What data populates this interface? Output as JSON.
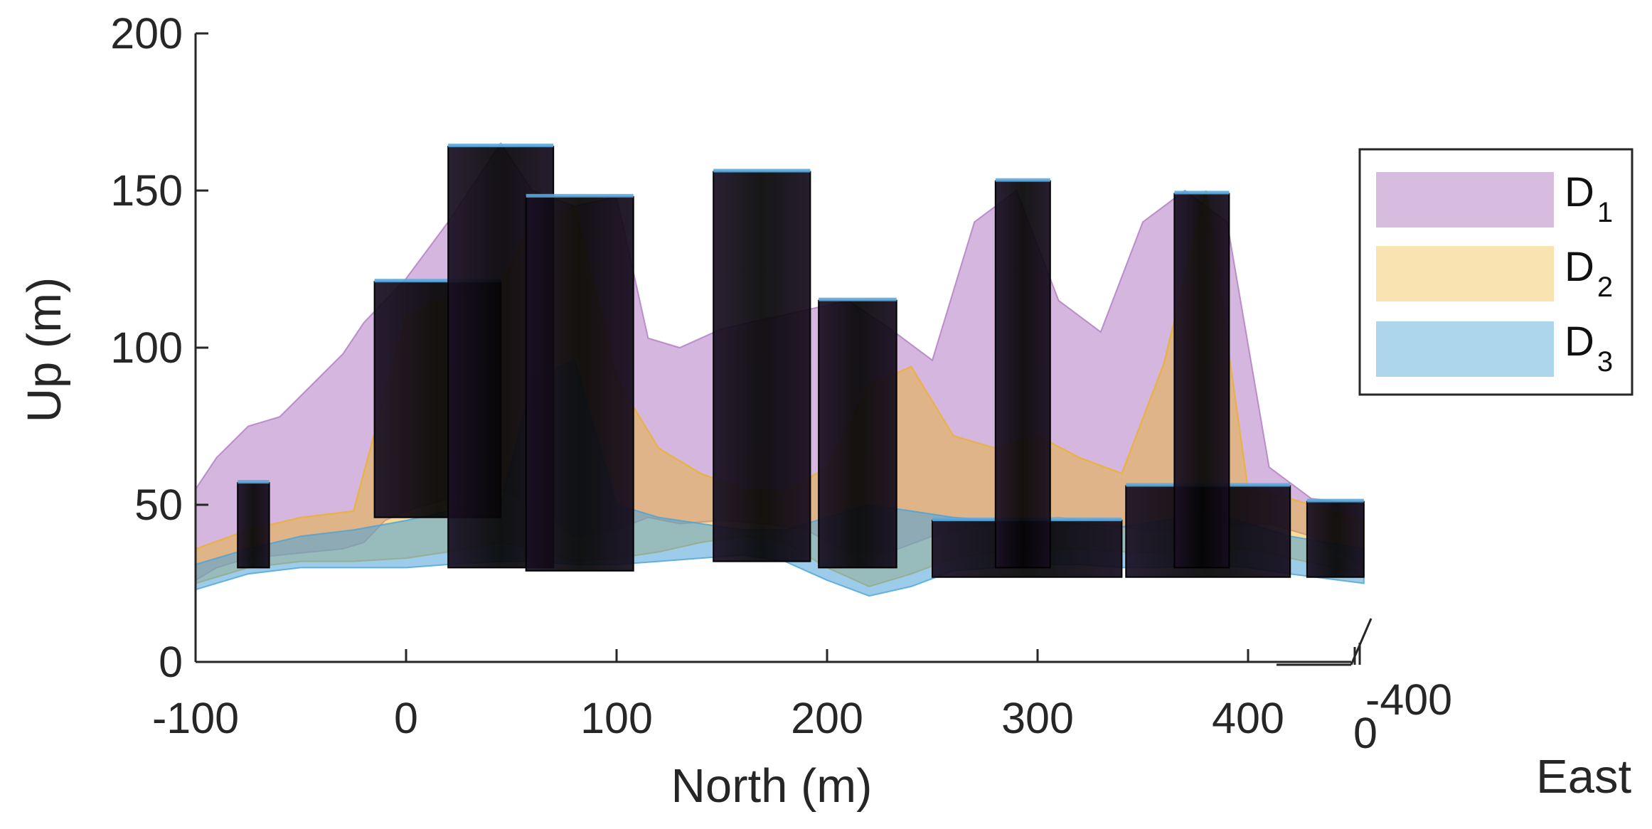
{
  "chart_data": {
    "type": "area",
    "xlabel": "North (m)",
    "ylabel": "Up (m)",
    "zlabel": "East",
    "xlim": [
      -100,
      450
    ],
    "ylim": [
      0,
      200
    ],
    "x_ticks": [
      "-100",
      "0",
      "100",
      "200",
      "300",
      "400"
    ],
    "y_ticks": [
      "0",
      "50",
      "100",
      "150",
      "200"
    ],
    "east_ticks": [
      "-400",
      "0"
    ],
    "legend": {
      "placement": "right",
      "entries": [
        "D",
        "D",
        "D"
      ],
      "subscripts": [
        "1",
        "2",
        "3"
      ]
    },
    "grid": false,
    "colors": {
      "D1": "#b07ac2",
      "D2": "#edb120",
      "D3": "#4aa3d8",
      "buildings": "#0a0a0a"
    },
    "buildings": [
      {
        "north": [
          -80,
          -65
        ],
        "up": [
          30,
          57
        ]
      },
      {
        "north": [
          -15,
          45
        ],
        "up": [
          46,
          121
        ]
      },
      {
        "north": [
          20,
          70
        ],
        "up": [
          30,
          164
        ]
      },
      {
        "north": [
          57,
          108
        ],
        "up": [
          29,
          148
        ]
      },
      {
        "north": [
          146,
          192
        ],
        "up": [
          32,
          156
        ]
      },
      {
        "north": [
          196,
          233
        ],
        "up": [
          30,
          115
        ]
      },
      {
        "north": [
          250,
          340
        ],
        "up": [
          27,
          45
        ]
      },
      {
        "north": [
          280,
          306
        ],
        "up": [
          30,
          153
        ]
      },
      {
        "north": [
          342,
          420
        ],
        "up": [
          27,
          56
        ]
      },
      {
        "north": [
          365,
          391
        ],
        "up": [
          30,
          149
        ]
      },
      {
        "north": [
          428,
          455
        ],
        "up": [
          27,
          51
        ]
      }
    ],
    "series": [
      {
        "name": "D1",
        "x": [
          -100,
          -90,
          -75,
          -60,
          -45,
          -30,
          -20,
          -10,
          0,
          20,
          45,
          60,
          80,
          100,
          115,
          130,
          150,
          170,
          190,
          210,
          230,
          250,
          270,
          290,
          310,
          330,
          350,
          370,
          390,
          410,
          430,
          455
        ],
        "y_low": [
          26,
          30,
          33,
          34,
          35,
          36,
          38,
          45,
          48,
          52,
          55,
          50,
          40,
          42,
          46,
          44,
          45,
          44,
          42,
          35,
          35,
          40,
          43,
          45,
          46,
          44,
          42,
          42,
          43,
          44,
          40,
          30
        ],
        "y_high": [
          55,
          65,
          75,
          78,
          88,
          98,
          108,
          115,
          122,
          140,
          165,
          150,
          145,
          148,
          103,
          100,
          106,
          109,
          112,
          115,
          106,
          96,
          140,
          150,
          115,
          105,
          140,
          150,
          140,
          62,
          52,
          50
        ]
      },
      {
        "name": "D2",
        "x": [
          -100,
          -75,
          -50,
          -25,
          0,
          20,
          45,
          60,
          80,
          100,
          120,
          140,
          160,
          180,
          200,
          220,
          240,
          260,
          280,
          300,
          320,
          340,
          360,
          380,
          400,
          420,
          455
        ],
        "y_low": [
          25,
          30,
          32,
          32,
          33,
          35,
          38,
          36,
          32,
          33,
          35,
          38,
          40,
          38,
          30,
          24,
          28,
          33,
          35,
          36,
          36,
          35,
          35,
          36,
          36,
          33,
          28
        ],
        "y_high": [
          36,
          42,
          46,
          48,
          110,
          116,
          120,
          140,
          145,
          90,
          68,
          60,
          55,
          54,
          62,
          88,
          94,
          72,
          68,
          72,
          65,
          60,
          95,
          150,
          55,
          52,
          45
        ]
      },
      {
        "name": "D3",
        "x": [
          -100,
          -75,
          -50,
          -25,
          0,
          20,
          45,
          60,
          80,
          100,
          120,
          140,
          160,
          180,
          200,
          220,
          240,
          260,
          280,
          300,
          320,
          340,
          360,
          380,
          400,
          420,
          455
        ],
        "y_low": [
          23,
          28,
          30,
          30,
          30,
          31,
          32,
          32,
          31,
          31,
          32,
          33,
          34,
          32,
          26,
          21,
          24,
          29,
          30,
          31,
          31,
          30,
          30,
          31,
          30,
          28,
          25
        ],
        "y_high": [
          31,
          36,
          40,
          42,
          45,
          48,
          50,
          90,
          96,
          50,
          46,
          44,
          42,
          42,
          46,
          50,
          48,
          46,
          45,
          45,
          44,
          43,
          45,
          48,
          44,
          40,
          36
        ]
      }
    ]
  }
}
